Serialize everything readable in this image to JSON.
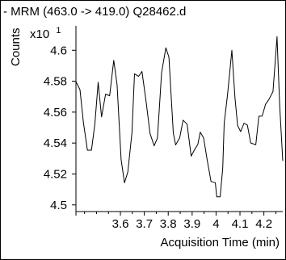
{
  "chart_data": {
    "type": "line",
    "title": "- MRM (463.0 -> 419.0) Q28462.d",
    "ylabel": "Counts",
    "y_multiplier": "x10",
    "y_multiplier_exp": "1",
    "xlabel": "Acquisition Time (min)",
    "xlim": [
      3.414,
      4.279
    ],
    "ylim": [
      4.4957,
      4.6158
    ],
    "x_ticks": [
      "3.6",
      "3.7",
      "3.8",
      "3.9",
      "4",
      "4.1",
      "4.2"
    ],
    "x_tick_values": [
      3.6,
      3.7,
      3.8,
      3.9,
      4.0,
      4.1,
      4.2
    ],
    "y_ticks": [
      "4.5",
      "4.52",
      "4.54",
      "4.56",
      "4.58",
      "4.6"
    ],
    "y_tick_values": [
      4.5,
      4.52,
      4.54,
      4.56,
      4.58,
      4.6
    ],
    "grid": false,
    "color": "#000000",
    "series": [
      {
        "x": [
          3.414,
          3.431,
          3.445,
          3.462,
          3.479,
          3.493,
          3.507,
          3.521,
          3.538,
          3.555,
          3.572,
          3.586,
          3.603,
          3.617,
          3.631,
          3.648,
          3.659,
          3.676,
          3.69,
          3.707,
          3.724,
          3.741,
          3.755,
          3.772,
          3.79,
          3.803,
          3.821,
          3.831,
          3.848,
          3.862,
          3.879,
          3.896,
          3.91,
          3.924,
          3.934,
          3.948,
          3.962,
          3.979,
          3.997,
          4.003,
          4.017,
          4.028,
          4.034,
          4.048,
          4.066,
          4.079,
          4.09,
          4.103,
          4.117,
          4.131,
          4.145,
          4.166,
          4.179,
          4.193,
          4.207,
          4.221,
          4.238,
          4.255,
          4.266,
          4.279
        ],
        "y": [
          4.5797,
          4.5745,
          4.5535,
          4.5354,
          4.5354,
          4.5522,
          4.5793,
          4.5569,
          4.5716,
          4.5706,
          4.5935,
          4.5778,
          4.5294,
          4.5143,
          4.5213,
          4.5465,
          4.5848,
          4.5831,
          4.5863,
          4.5674,
          4.5462,
          4.5382,
          4.5433,
          4.5854,
          4.6016,
          4.5955,
          4.5465,
          4.5388,
          4.5433,
          4.5548,
          4.5522,
          4.5315,
          4.5357,
          4.5392,
          4.5471,
          4.5433,
          4.5298,
          4.5151,
          4.5144,
          4.5052,
          4.5052,
          4.5238,
          4.5529,
          4.5711,
          4.6,
          4.5696,
          4.5513,
          4.5474,
          4.5529,
          4.5516,
          4.5401,
          4.5389,
          4.5573,
          4.5574,
          4.5651,
          4.5681,
          4.5733,
          4.6088,
          4.5641,
          4.5285
        ]
      }
    ]
  }
}
